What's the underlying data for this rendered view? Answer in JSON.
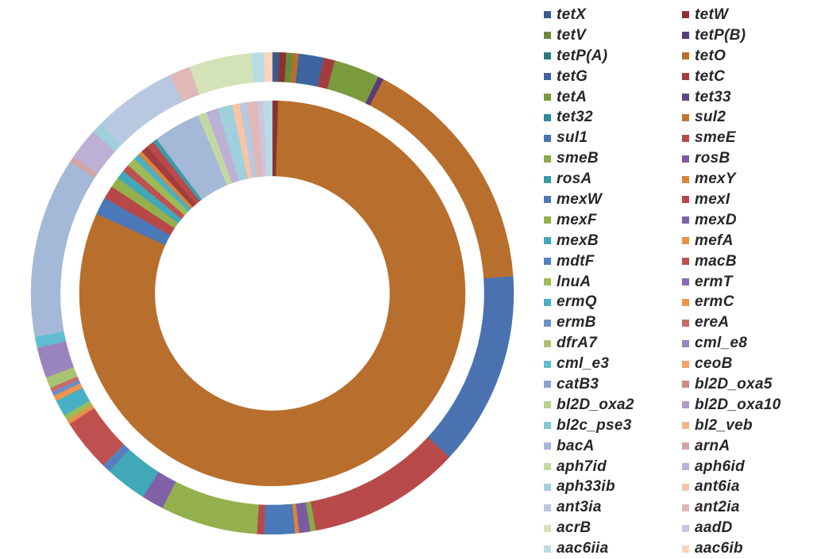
{
  "chart_data": {
    "type": "donut",
    "title": "",
    "legend_placement": "right",
    "legend": [
      {
        "label": "tetX",
        "color": "#3a5a8c"
      },
      {
        "label": "tetW",
        "color": "#8c3030"
      },
      {
        "label": "tetV",
        "color": "#6a8a3a"
      },
      {
        "label": "tetP(B)",
        "color": "#5a3a78"
      },
      {
        "label": "tetP(A)",
        "color": "#2a7a88"
      },
      {
        "label": "tetO",
        "color": "#b86e2c"
      },
      {
        "label": "tetG",
        "color": "#3d63a0"
      },
      {
        "label": "tetC",
        "color": "#a33d3d"
      },
      {
        "label": "tetA",
        "color": "#7a9a3e"
      },
      {
        "label": "tet33",
        "color": "#5f4685"
      },
      {
        "label": "tet32",
        "color": "#2e8a9a"
      },
      {
        "label": "sul2",
        "color": "#c27530"
      },
      {
        "label": "sul1",
        "color": "#4a72b0"
      },
      {
        "label": "smeE",
        "color": "#b84a4a"
      },
      {
        "label": "smeB",
        "color": "#8aaa48"
      },
      {
        "label": "rosB",
        "color": "#7a5aa0"
      },
      {
        "label": "rosA",
        "color": "#3a9aaa"
      },
      {
        "label": "mexY",
        "color": "#d9843a"
      },
      {
        "label": "mexW",
        "color": "#4a78b8"
      },
      {
        "label": "mexI",
        "color": "#b84848"
      },
      {
        "label": "mexF",
        "color": "#94b04c"
      },
      {
        "label": "mexD",
        "color": "#8060a8"
      },
      {
        "label": "mexB",
        "color": "#40a8b8"
      },
      {
        "label": "mefA",
        "color": "#e8904a"
      },
      {
        "label": "mdtF",
        "color": "#5480c0"
      },
      {
        "label": "macB",
        "color": "#c05050"
      },
      {
        "label": "lnuA",
        "color": "#9cba58"
      },
      {
        "label": "ermT",
        "color": "#8a6ab4"
      },
      {
        "label": "ermQ",
        "color": "#48b0c4"
      },
      {
        "label": "ermC",
        "color": "#f0944c"
      },
      {
        "label": "ermB",
        "color": "#6a8ec8"
      },
      {
        "label": "ereA",
        "color": "#c86a6a"
      },
      {
        "label": "dfrA7",
        "color": "#a8c470"
      },
      {
        "label": "cml_e8",
        "color": "#9a84be"
      },
      {
        "label": "cml_e3",
        "color": "#60bcd0"
      },
      {
        "label": "ceoB",
        "color": "#f4a468"
      },
      {
        "label": "catB3",
        "color": "#88a4d0"
      },
      {
        "label": "bl2D_oxa5",
        "color": "#d08a8a"
      },
      {
        "label": "bl2D_oxa2",
        "color": "#b8d08a"
      },
      {
        "label": "bl2D_oxa10",
        "color": "#ac9cc8"
      },
      {
        "label": "bl2c_pse3",
        "color": "#84c8d4"
      },
      {
        "label": "bl2_veb",
        "color": "#f8b488"
      },
      {
        "label": "bacA",
        "color": "#a4b8d8"
      },
      {
        "label": "arnA",
        "color": "#d4a4a4"
      },
      {
        "label": "aph7id",
        "color": "#c4d8a4"
      },
      {
        "label": "aph6id",
        "color": "#bcb0d4"
      },
      {
        "label": "aph33ib",
        "color": "#a0d0dc"
      },
      {
        "label": "ant6ia",
        "color": "#fac4a4"
      },
      {
        "label": "ant3ia",
        "color": "#b8c8e0"
      },
      {
        "label": "ant2ia",
        "color": "#e0b8b8"
      },
      {
        "label": "acrB",
        "color": "#d4e2b8"
      },
      {
        "label": "aadD",
        "color": "#cec4e0"
      },
      {
        "label": "aac6iia",
        "color": "#b8dce4"
      },
      {
        "label": "aac6ib",
        "color": "#fcd4bc"
      }
    ],
    "rings": [
      {
        "name": "outer",
        "slices": [
          {
            "gene": "tetX",
            "value": 0.5
          },
          {
            "gene": "tetW",
            "value": 0.5
          },
          {
            "gene": "tetV",
            "value": 0.5
          },
          {
            "gene": "tetO",
            "value": 0.4
          },
          {
            "gene": "tetG",
            "value": 1.8
          },
          {
            "gene": "tetC",
            "value": 0.8
          },
          {
            "gene": "tetA",
            "value": 3.3
          },
          {
            "gene": "tetP(B)",
            "value": 0.4
          },
          {
            "gene": "tetO",
            "value": 17.5
          },
          {
            "gene": "sul1",
            "value": 14.0
          },
          {
            "gene": "smeE",
            "value": 11.0
          },
          {
            "gene": "smeB",
            "value": 0.4
          },
          {
            "gene": "rosB",
            "value": 0.8
          },
          {
            "gene": "mexY",
            "value": 0.3
          },
          {
            "gene": "mexW",
            "value": 2.2
          },
          {
            "gene": "mexI",
            "value": 0.5
          },
          {
            "gene": "mexF",
            "value": 7.0
          },
          {
            "gene": "mexD",
            "value": 1.6
          },
          {
            "gene": "mexB",
            "value": 3.0
          },
          {
            "gene": "mdtF",
            "value": 0.6
          },
          {
            "gene": "macB",
            "value": 3.8
          },
          {
            "gene": "mefA",
            "value": 0.3
          },
          {
            "gene": "lnuA",
            "value": 0.4
          },
          {
            "gene": "ermQ",
            "value": 1.2
          },
          {
            "gene": "ermC",
            "value": 0.4
          },
          {
            "gene": "ermB",
            "value": 0.3
          },
          {
            "gene": "ereA",
            "value": 0.3
          },
          {
            "gene": "dfrA7",
            "value": 0.8
          },
          {
            "gene": "cml_e8",
            "value": 2.2
          },
          {
            "gene": "cml_e3",
            "value": 0.8
          },
          {
            "gene": "bacA",
            "value": 13.0
          },
          {
            "gene": "arnA",
            "value": 0.4
          },
          {
            "gene": "aph6id",
            "value": 2.3
          },
          {
            "gene": "aph33ib",
            "value": 0.8
          },
          {
            "gene": "ant3ia",
            "value": 6.0
          },
          {
            "gene": "ant2ia",
            "value": 1.5
          },
          {
            "gene": "acrB",
            "value": 4.5
          },
          {
            "gene": "aac6iia",
            "value": 0.9
          },
          {
            "gene": "aac6ib",
            "value": 0.6
          }
        ]
      },
      {
        "name": "inner",
        "slices": [
          {
            "gene": "tetW",
            "value": 0.4
          },
          {
            "gene": "tetO",
            "value": 66.0
          },
          {
            "gene": "mexW",
            "value": 1.2
          },
          {
            "gene": "mexI",
            "value": 0.9
          },
          {
            "gene": "mexF",
            "value": 0.7
          },
          {
            "gene": "mexB",
            "value": 0.6
          },
          {
            "gene": "macB",
            "value": 0.5
          },
          {
            "gene": "lnuA",
            "value": 0.6
          },
          {
            "gene": "ermQ",
            "value": 0.4
          },
          {
            "gene": "mexY",
            "value": 0.3
          },
          {
            "gene": "tetC",
            "value": 0.5
          },
          {
            "gene": "smeE",
            "value": 0.5
          },
          {
            "gene": "rosA",
            "value": 0.3
          },
          {
            "gene": "bacA",
            "value": 3.2
          },
          {
            "gene": "aph7id",
            "value": 0.6
          },
          {
            "gene": "aph6id",
            "value": 0.8
          },
          {
            "gene": "aph33ib",
            "value": 1.0
          },
          {
            "gene": "ant6ia",
            "value": 0.5
          },
          {
            "gene": "ant3ia",
            "value": 0.5
          },
          {
            "gene": "ant2ia",
            "value": 0.7
          },
          {
            "gene": "aadD",
            "value": 0.4
          },
          {
            "gene": "aac6iia",
            "value": 0.6
          }
        ]
      }
    ]
  }
}
